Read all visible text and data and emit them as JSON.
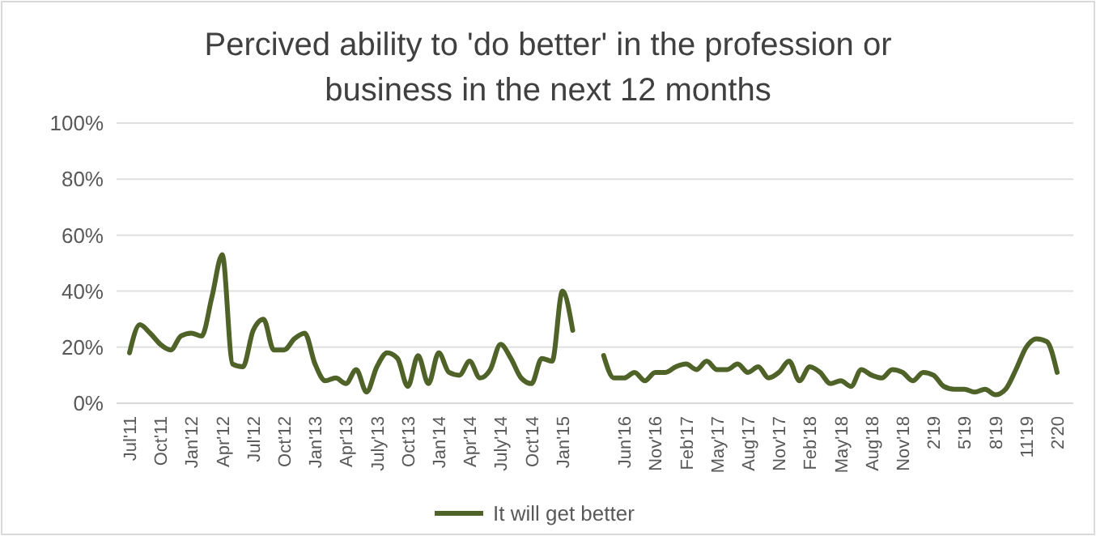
{
  "chart_data": {
    "type": "line",
    "title": "Percived ability to 'do better' in the profession or business in the next 12 months",
    "categories": [
      "Jul'11",
      null,
      null,
      "Oct'11",
      null,
      null,
      "Jan'12",
      null,
      null,
      "Apr'12",
      null,
      null,
      "Jul'12",
      null,
      null,
      "Oct'12",
      null,
      null,
      "Jan'13",
      null,
      null,
      "Apr'13",
      null,
      null,
      "July'13",
      null,
      null,
      "Oct'13",
      null,
      null,
      "Jan'14",
      null,
      null,
      "Apr'14",
      null,
      null,
      "July'14",
      null,
      null,
      "Oct'14",
      null,
      null,
      "Jan'15",
      null,
      null,
      null,
      null,
      null,
      "Jun'16",
      null,
      null,
      "Nov'16",
      null,
      null,
      "Feb'17",
      null,
      null,
      "May'17",
      null,
      null,
      "Aug'17",
      null,
      null,
      "Nov'17",
      null,
      null,
      "Feb'18",
      null,
      null,
      "May'18",
      null,
      null,
      "Aug'18",
      null,
      null,
      "Nov'18",
      null,
      null,
      "2'19",
      null,
      null,
      "5'19",
      null,
      null,
      "8'19",
      null,
      null,
      "11'19",
      null,
      null,
      "2'20"
    ],
    "series": [
      {
        "name": "It will get better",
        "color": "#4f6228",
        "values": [
          18,
          28,
          25,
          21,
          19,
          24,
          25,
          24,
          38,
          53,
          14,
          13,
          26,
          30,
          19,
          19,
          23,
          25,
          14,
          8,
          9,
          7,
          12,
          4,
          13,
          18,
          16,
          6,
          17,
          7,
          18,
          11,
          10,
          15,
          9,
          12,
          21,
          16,
          9,
          7,
          16,
          15,
          40,
          26,
          null,
          null,
          17,
          9,
          9,
          11,
          8,
          11,
          11,
          13,
          14,
          12,
          15,
          12,
          12,
          14,
          11,
          13,
          9,
          11,
          15,
          8,
          13,
          11,
          7,
          8,
          6,
          12,
          10,
          9,
          12,
          11,
          8,
          11,
          10,
          6,
          5,
          5,
          4,
          5,
          3,
          5,
          12,
          20,
          23,
          22,
          11
        ]
      }
    ],
    "ylim": [
      0,
      100
    ],
    "yticks": [
      {
        "value": 0,
        "label": "0%"
      },
      {
        "value": 20,
        "label": "20%"
      },
      {
        "value": 40,
        "label": "40%"
      },
      {
        "value": 60,
        "label": "60%"
      },
      {
        "value": 80,
        "label": "80%"
      },
      {
        "value": 100,
        "label": "100%"
      }
    ],
    "grid": "y",
    "legend": "bottom",
    "marker": "none",
    "line_style": "solid"
  }
}
